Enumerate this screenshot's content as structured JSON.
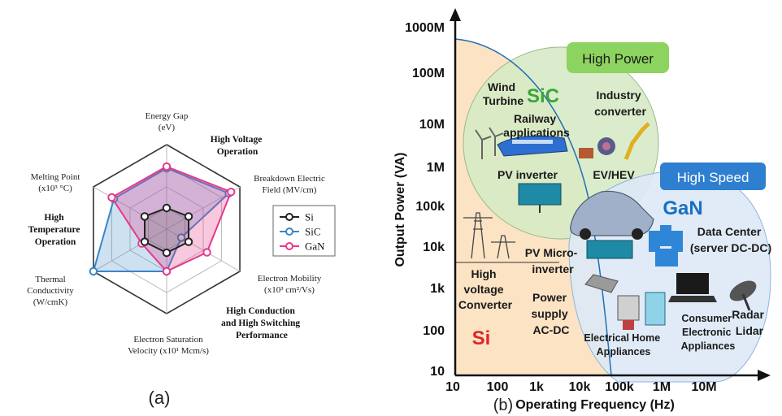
{
  "panel_a": {
    "caption": "(a)",
    "axes": [
      {
        "lines": [
          "Energy Gap",
          "(eV)"
        ]
      },
      {
        "lines": [
          "Breakdown Electric",
          "Field (MV/cm)"
        ]
      },
      {
        "lines": [
          "Electron Mobility",
          "(x10³ cm²/Vs)"
        ]
      },
      {
        "lines": [
          "Electron Saturation",
          "Velocity (x10¹ Mcm/s)"
        ]
      },
      {
        "lines": [
          "Thermal",
          "Conductivity",
          "(W/cmK)"
        ]
      },
      {
        "lines": [
          "Melting Point",
          "(x10³ °C)"
        ]
      }
    ],
    "annotations": [
      {
        "lines": [
          "High Voltage",
          "Operation"
        ]
      },
      {
        "lines": [
          "High",
          "Temperature",
          "Operation"
        ]
      },
      {
        "lines": [
          "High Conduction",
          "and High Switching",
          "Performance"
        ]
      }
    ],
    "legend": [
      "Si",
      "SiC",
      "GaN"
    ],
    "colors": {
      "Si": "#222222",
      "SiC": "#3a86c8",
      "GaN": "#e6388c"
    }
  },
  "panel_b": {
    "caption": "(b)",
    "xlabel": "Operating Frequency (Hz)",
    "ylabel": "Output Power (VA)",
    "xticks": [
      "10",
      "100",
      "1k",
      "10k",
      "100k",
      "1M",
      "10M"
    ],
    "yticks": [
      "1000M",
      "100M",
      "10M",
      "1M",
      "100k",
      "10k",
      "1k",
      "100",
      "10"
    ],
    "regions": {
      "si": "Si",
      "sic": "SiC",
      "gan": "GaN"
    },
    "badges": {
      "high_power": "High Power",
      "high_speed": "High Speed"
    },
    "labels": {
      "wind": [
        "Wind",
        "Turbine"
      ],
      "railway": [
        "Railway",
        "applications"
      ],
      "industry": [
        "Industry",
        "converter"
      ],
      "pv_inverter": "PV inverter",
      "ev": "EV/HEV",
      "datacenter": [
        "Data Center",
        "(server DC-DC)"
      ],
      "pv_micro": [
        "PV Micro-",
        "inverter"
      ],
      "hv_converter": [
        "High",
        "voltage",
        "Converter"
      ],
      "power_supply": [
        "Power",
        "supply",
        "AC-DC"
      ],
      "home": [
        "Electrical Home",
        "Appliances"
      ],
      "consumer": [
        "Consumer",
        "Electronic",
        "Appliances"
      ],
      "radar": [
        "Radar",
        "Lidar"
      ]
    },
    "colors": {
      "si": "#fbe3c4",
      "sic": "#d6eac5",
      "gan": "#dde9f6",
      "badge_power": "#8dd35f",
      "badge_speed": "#2f7fd0",
      "si_text": "#e3242b",
      "sic_text": "#3aa63a",
      "gan_text": "#1a6fc2"
    }
  },
  "chart_data": [
    {
      "type": "radar",
      "axes": [
        "Energy Gap",
        "Breakdown Electric Field",
        "Electron Mobility",
        "Electron Saturation Velocity",
        "Thermal Conductivity",
        "Melting Point"
      ],
      "series": [
        {
          "name": "Si",
          "values": [
            0.25,
            0.3,
            0.3,
            0.28,
            0.3,
            0.3
          ]
        },
        {
          "name": "SiC",
          "values": [
            0.72,
            0.85,
            0.2,
            0.5,
            1.0,
            0.72
          ]
        },
        {
          "name": "GaN",
          "values": [
            0.74,
            0.88,
            0.55,
            0.5,
            0.34,
            0.75
          ]
        }
      ],
      "scale": [
        0,
        1
      ]
    },
    {
      "type": "area",
      "xscale": "log",
      "yscale": "log",
      "xticks": [
        "10",
        "100",
        "1k",
        "10k",
        "100k",
        "1M",
        "10M"
      ],
      "yticks": [
        "10",
        "100",
        "1k",
        "10k",
        "100k",
        "1M",
        "10M",
        "100M",
        "1000M"
      ],
      "series": [
        {
          "name": "Si",
          "region": "low-frequency / all power"
        },
        {
          "name": "SiC",
          "region": "high power, mid frequency"
        },
        {
          "name": "GaN",
          "region": "high frequency, low-mid power"
        }
      ]
    }
  ]
}
